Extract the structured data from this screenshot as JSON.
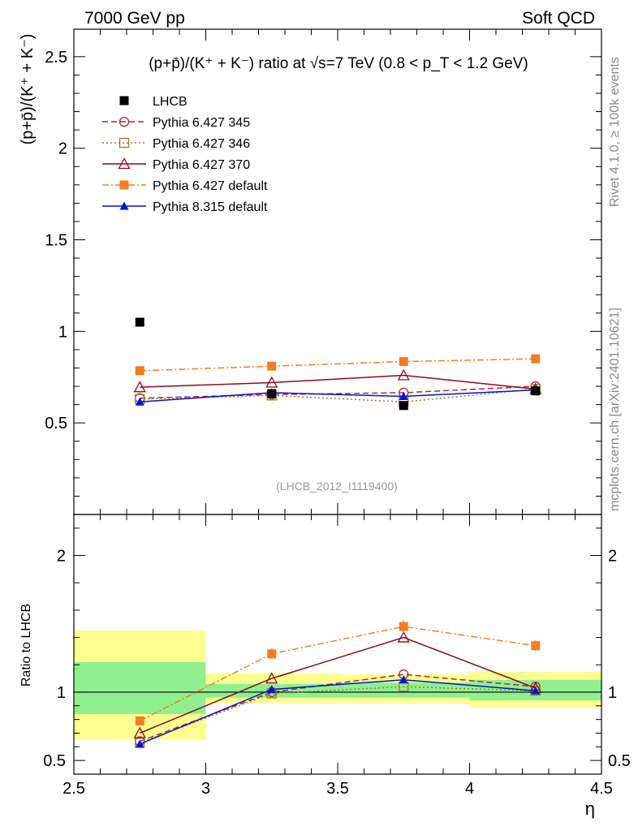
{
  "header": {
    "left": "7000 GeV pp",
    "right": "Soft QCD"
  },
  "side_labels": {
    "rivet": "Rivet 4.1.0, ≥ 100k events",
    "mcplots": "mcplots.cern.ch [arXiv:2401.10621]"
  },
  "analysis_id": "(LHCB_2012_I1119400)",
  "colors": {
    "lhcb": "#000000",
    "py345": "#b0283a",
    "py346": "#a07a2a",
    "py370": "#8b0a1e",
    "py6def": "#f57c20",
    "py8def": "#0015d0",
    "band_green": "#90f090",
    "band_yellow": "#ffff90"
  },
  "chart_data": [
    {
      "type": "scatter",
      "panel": "main",
      "title": "(p+p̄)/(K⁺ + K⁻) ratio at √s=7 TeV (0.8 < p_T < 1.2 GeV)",
      "ylabel": "(p+p̄)/(K⁺ + K⁻)",
      "xlim": [
        2.5,
        4.5
      ],
      "ylim": [
        0,
        2.65
      ],
      "yticks": [
        0.5,
        1,
        1.5,
        2,
        2.5
      ],
      "ytick_labels": [
        "0.5",
        "1",
        "1.5",
        "2",
        "2.5"
      ],
      "x": [
        2.75,
        3.25,
        3.75,
        4.25
      ],
      "legend_position": "top-left",
      "series": [
        {
          "key": "lhcb",
          "name": "LHCB",
          "style": "data",
          "marker": "square-filled",
          "values": [
            1.05,
            0.66,
            0.595,
            0.675
          ],
          "errors": [
            0.0,
            0.01,
            0.01,
            0.015
          ]
        },
        {
          "key": "py345",
          "name": "Pythia 6.427 345",
          "style": "dash",
          "marker": "circle-open",
          "values": [
            0.635,
            0.655,
            0.665,
            0.7
          ]
        },
        {
          "key": "py346",
          "name": "Pythia 6.427 346",
          "style": "dot",
          "marker": "square-open",
          "values": [
            0.63,
            0.65,
            0.615,
            0.685
          ]
        },
        {
          "key": "py370",
          "name": "Pythia 6.427 370",
          "style": "solid",
          "marker": "triangle-open",
          "values": [
            0.695,
            0.72,
            0.76,
            0.685
          ]
        },
        {
          "key": "py6def",
          "name": "Pythia 6.427 default",
          "style": "dashdot",
          "marker": "square-filled",
          "values": [
            0.785,
            0.81,
            0.835,
            0.85
          ],
          "errors": [
            0.02,
            0.02,
            0.02,
            0.025
          ]
        },
        {
          "key": "py8def",
          "name": "Pythia 8.315 default",
          "style": "solid",
          "marker": "triangle-filled",
          "values": [
            0.615,
            0.665,
            0.645,
            0.68
          ]
        }
      ]
    },
    {
      "type": "scatter",
      "panel": "ratio",
      "ylabel": "Ratio to LHCB",
      "xlabel": "η",
      "xlim": [
        2.5,
        4.5
      ],
      "ylim": [
        0.4,
        2.3
      ],
      "yticks": [
        0.5,
        1,
        2
      ],
      "ytick_labels": [
        "0.5",
        "1",
        "2"
      ],
      "xticks": [
        2.5,
        3,
        3.5,
        4,
        4.5
      ],
      "xtick_labels": [
        "2.5",
        "3",
        "3.5",
        "4",
        "4.5"
      ],
      "x": [
        2.75,
        3.25,
        3.75,
        4.25
      ],
      "bins": [
        [
          2.5,
          3.0
        ],
        [
          3.0,
          3.5
        ],
        [
          3.5,
          4.0
        ],
        [
          4.0,
          4.5
        ]
      ],
      "band_green": [
        [
          0.84,
          1.22
        ],
        [
          0.96,
          1.06
        ],
        [
          0.96,
          1.07
        ],
        [
          0.94,
          1.09
        ]
      ],
      "band_yellow": [
        [
          0.65,
          1.45
        ],
        [
          0.92,
          1.14
        ],
        [
          0.92,
          1.13
        ],
        [
          0.89,
          1.15
        ]
      ],
      "series": [
        {
          "key": "py345",
          "style": "dash",
          "marker": "circle-open",
          "values": [
            0.64,
            1.0,
            1.13,
            1.04
          ]
        },
        {
          "key": "py346",
          "style": "dot",
          "marker": "square-open",
          "values": [
            0.63,
            0.99,
            1.04,
            1.01
          ]
        },
        {
          "key": "py370",
          "style": "solid",
          "marker": "triangle-open",
          "values": [
            0.7,
            1.1,
            1.4,
            1.03
          ]
        },
        {
          "key": "py6def",
          "style": "dashdot",
          "marker": "square-filled",
          "values": [
            0.79,
            1.28,
            1.48,
            1.34
          ]
        },
        {
          "key": "py8def",
          "style": "solid",
          "marker": "triangle-filled",
          "values": [
            0.62,
            1.02,
            1.09,
            1.01
          ]
        }
      ]
    }
  ]
}
